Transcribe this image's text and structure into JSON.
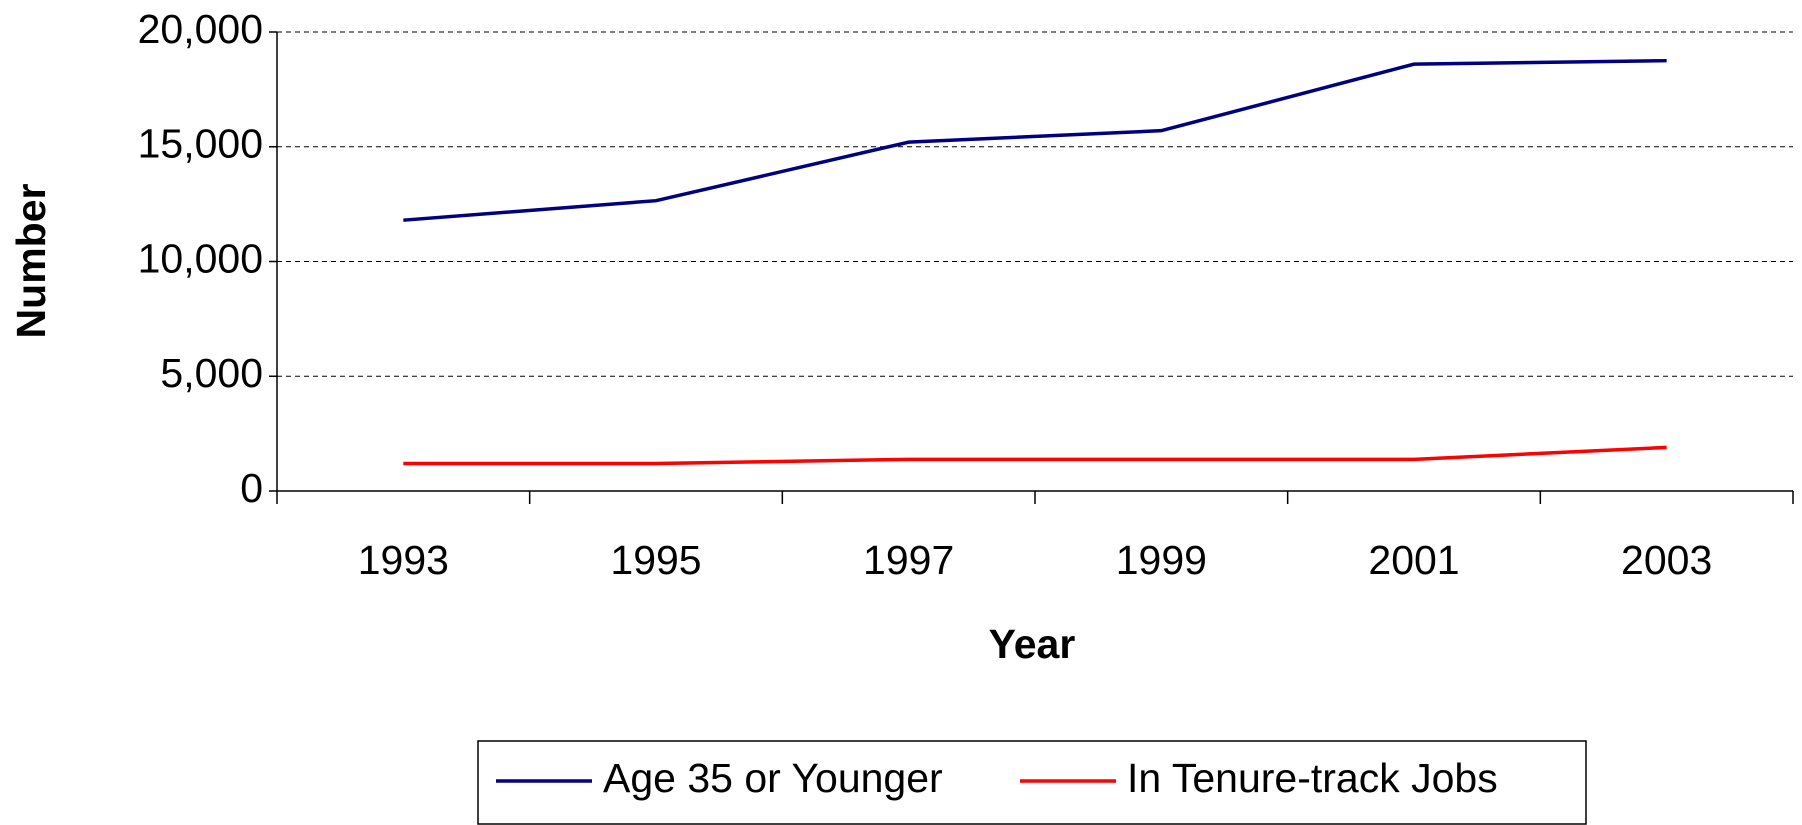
{
  "chart_data": {
    "type": "line",
    "x_label": "Year",
    "y_label": "Number",
    "categories": [
      "1993",
      "1995",
      "1997",
      "1999",
      "2001",
      "2003"
    ],
    "series": [
      {
        "name": "Age 35 or Younger",
        "color": "#000080",
        "values": [
          11800,
          12650,
          15200,
          15700,
          18600,
          18750
        ]
      },
      {
        "name": "In Tenure-track Jobs",
        "color": "#ff0000",
        "values": [
          1200,
          1200,
          1380,
          1380,
          1380,
          1900
        ]
      }
    ],
    "ylim": [
      0,
      20000
    ],
    "yticks": [
      0,
      {
        "value": 5000,
        "label": "5,000"
      },
      {
        "value": 10000,
        "label": "10,000"
      },
      {
        "value": 15000,
        "label": "15,000"
      },
      {
        "value": 20000,
        "label": "20,000"
      }
    ],
    "grid": true,
    "legend": "bottom"
  }
}
